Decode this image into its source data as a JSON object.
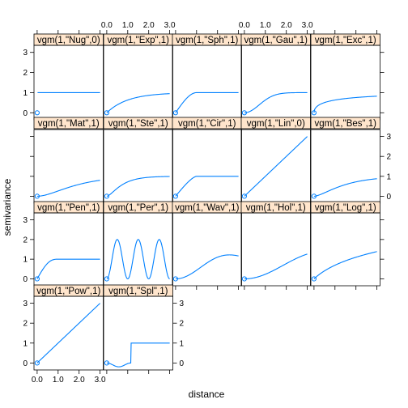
{
  "chart_data": {
    "type": "line",
    "xlabel": "distance",
    "ylabel": "semivariance",
    "xlim": [
      -0.15,
      3.15
    ],
    "ylim": [
      -0.35,
      3.35
    ],
    "x_ticks": [
      0,
      1,
      2,
      3
    ],
    "x_tick_labels": [
      "0.0",
      "1.0",
      "2.0",
      "3.0"
    ],
    "y_ticks": [
      0,
      1,
      2,
      3
    ],
    "y_tick_labels": [
      "0",
      "1",
      "2",
      "3"
    ],
    "colors": {
      "line": "#0080ff",
      "strip": "#ffe5cc",
      "frame": "#000000"
    },
    "panels": [
      {
        "label": "vgm(1,\"Nug\",0)",
        "model": "Nug"
      },
      {
        "label": "vgm(1,\"Exp\",1)",
        "model": "Exp"
      },
      {
        "label": "vgm(1,\"Sph\",1)",
        "model": "Sph"
      },
      {
        "label": "vgm(1,\"Gau\",1)",
        "model": "Gau"
      },
      {
        "label": "vgm(1,\"Exc\",1)",
        "model": "Exc"
      },
      {
        "label": "vgm(1,\"Mat\",1)",
        "model": "Mat"
      },
      {
        "label": "vgm(1,\"Ste\",1)",
        "model": "Ste"
      },
      {
        "label": "vgm(1,\"Cir\",1)",
        "model": "Cir"
      },
      {
        "label": "vgm(1,\"Lin\",0)",
        "model": "Lin"
      },
      {
        "label": "vgm(1,\"Bes\",1)",
        "model": "Bes"
      },
      {
        "label": "vgm(1,\"Pen\",1)",
        "model": "Pen"
      },
      {
        "label": "vgm(1,\"Per\",1)",
        "model": "Per"
      },
      {
        "label": "vgm(1,\"Wav\",1)",
        "model": "Wav"
      },
      {
        "label": "vgm(1,\"Hol\",1)",
        "model": "Hol"
      },
      {
        "label": "vgm(1,\"Log\",1)",
        "model": "Log"
      },
      {
        "label": "vgm(1,\"Pow\",1)",
        "model": "Pow"
      },
      {
        "label": "vgm(1,\"Spl\",1)",
        "model": "Spl"
      }
    ]
  }
}
